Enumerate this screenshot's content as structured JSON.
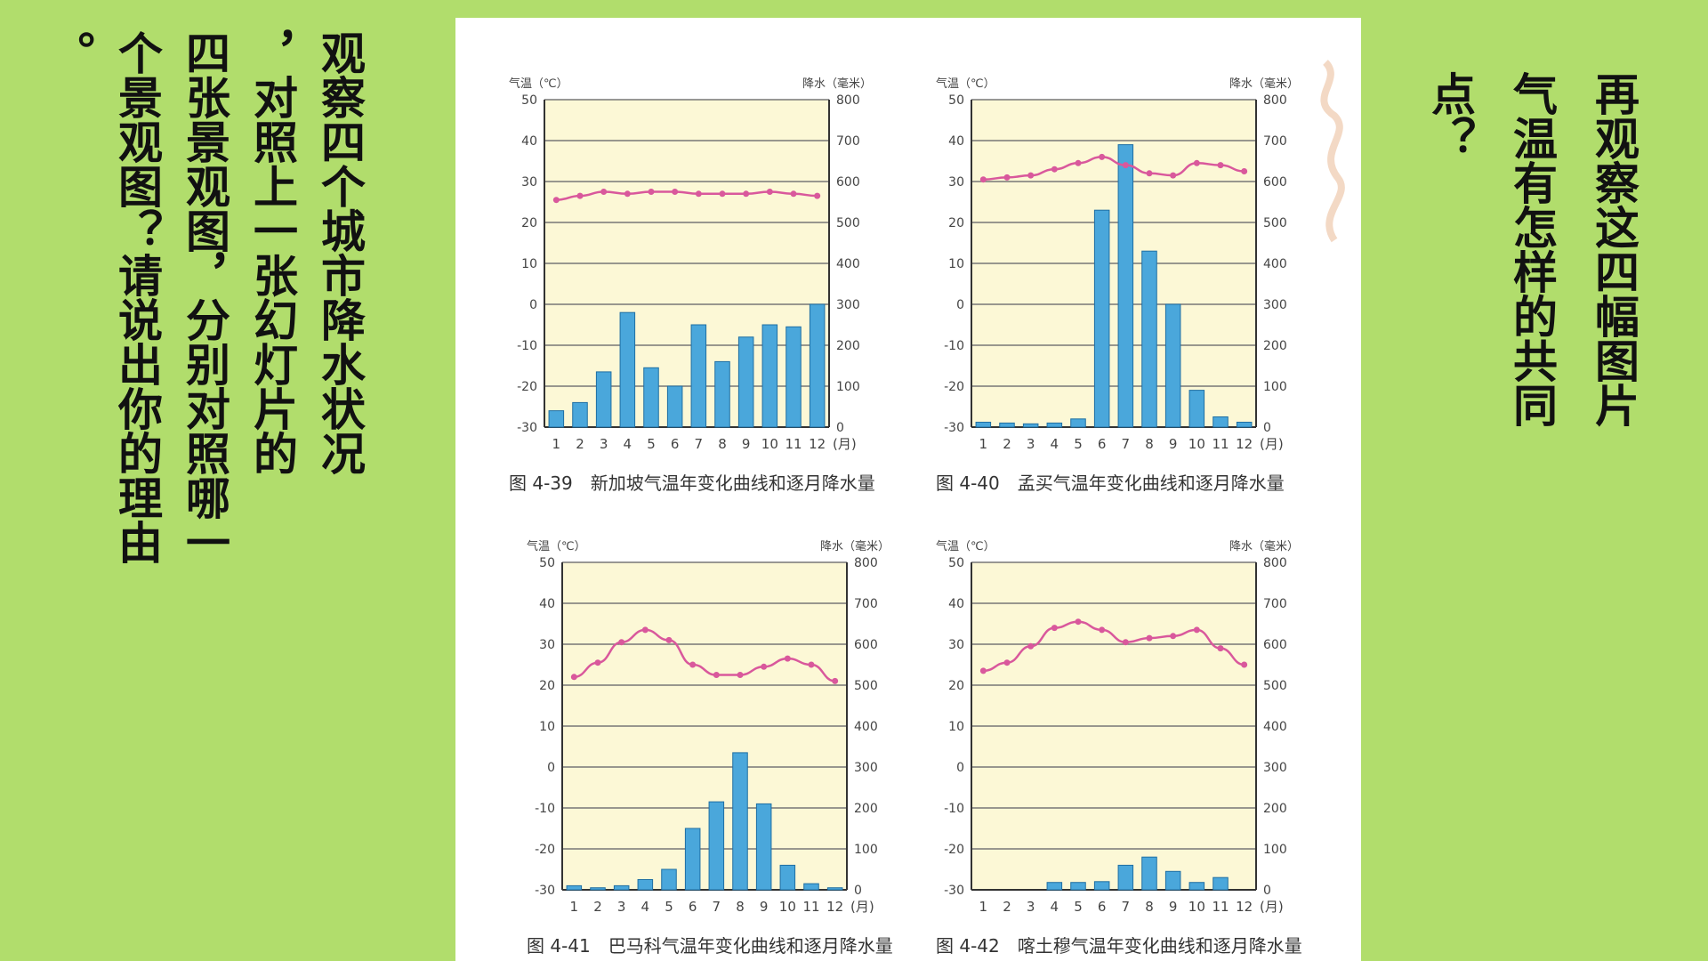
{
  "slide": {
    "left_lines": [
      "观察四个城市降水状况",
      "，对照上一张幻灯片的",
      "四张景观图，分别对照哪一",
      "个景观图？请说出你的理由",
      "。"
    ],
    "right_lines": [
      "再观察这四幅图片",
      "气温有怎样的共同",
      "点？"
    ]
  },
  "colors": {
    "background": "#b1dd6c",
    "plot_bg": "#fcf8d6",
    "temp_line": "#d9589c",
    "bar": "#4aa7db"
  },
  "chart_data": [
    {
      "type": "bar",
      "caption": "图 4-39　新加坡气温年变化曲线和逐月降水量",
      "left_axis_label": "气温（℃）",
      "right_axis_label": "降水（毫米）",
      "categories": [
        "1",
        "2",
        "3",
        "4",
        "5",
        "6",
        "7",
        "8",
        "9",
        "10",
        "11",
        "12"
      ],
      "month_unit": "(月)",
      "temperature_ticks": [
        50,
        40,
        30,
        20,
        10,
        0,
        -10,
        -20,
        -30
      ],
      "precip_ticks": [
        800,
        700,
        600,
        500,
        400,
        300,
        200,
        100,
        0
      ],
      "temperature_range": [
        -30,
        50
      ],
      "precip_range": [
        0,
        800
      ],
      "precipitation": [
        40,
        60,
        135,
        280,
        145,
        100,
        250,
        160,
        220,
        250,
        245,
        300
      ],
      "temperature": [
        25.5,
        26.5,
        27.5,
        27,
        27.5,
        27.5,
        27,
        27,
        27,
        27.5,
        27,
        26.5
      ]
    },
    {
      "type": "bar",
      "caption": "图 4-40　孟买气温年变化曲线和逐月降水量",
      "left_axis_label": "气温（℃）",
      "right_axis_label": "降水（毫米）",
      "categories": [
        "1",
        "2",
        "3",
        "4",
        "5",
        "6",
        "7",
        "8",
        "9",
        "10",
        "11",
        "12"
      ],
      "month_unit": "(月)",
      "temperature_ticks": [
        50,
        40,
        30,
        20,
        10,
        0,
        -10,
        -20,
        -30
      ],
      "precip_ticks": [
        800,
        700,
        600,
        500,
        400,
        300,
        200,
        100,
        0
      ],
      "temperature_range": [
        -30,
        50
      ],
      "precip_range": [
        0,
        800
      ],
      "precipitation": [
        12,
        10,
        8,
        10,
        20,
        530,
        690,
        430,
        300,
        90,
        25,
        12
      ],
      "temperature": [
        30.5,
        31,
        31.5,
        33,
        34.5,
        36,
        34,
        32,
        31.5,
        34.5,
        34,
        32.5
      ]
    },
    {
      "type": "bar",
      "caption": "图 4-41　巴马科气温年变化曲线和逐月降水量",
      "left_axis_label": "气温（℃）",
      "right_axis_label": "降水（毫米）",
      "categories": [
        "1",
        "2",
        "3",
        "4",
        "5",
        "6",
        "7",
        "8",
        "9",
        "10",
        "11",
        "12"
      ],
      "month_unit": "(月)",
      "temperature_ticks": [
        50,
        40,
        30,
        20,
        10,
        0,
        -10,
        -20,
        -30
      ],
      "precip_ticks": [
        800,
        700,
        600,
        500,
        400,
        300,
        200,
        100,
        0
      ],
      "temperature_range": [
        -30,
        50
      ],
      "precip_range": [
        0,
        800
      ],
      "precipitation": [
        10,
        5,
        10,
        25,
        50,
        150,
        215,
        335,
        210,
        60,
        15,
        5
      ],
      "temperature": [
        22,
        25.5,
        30.5,
        33.5,
        31,
        25,
        22.5,
        22.5,
        24.5,
        26.5,
        25,
        21
      ]
    },
    {
      "type": "bar",
      "caption": "图 4-42　喀土穆气温年变化曲线和逐月降水量",
      "left_axis_label": "气温（℃）",
      "right_axis_label": "降水（毫米）",
      "categories": [
        "1",
        "2",
        "3",
        "4",
        "5",
        "6",
        "7",
        "8",
        "9",
        "10",
        "11",
        "12"
      ],
      "month_unit": "(月)",
      "temperature_ticks": [
        50,
        40,
        30,
        20,
        10,
        0,
        -10,
        -20,
        -30
      ],
      "precip_ticks": [
        800,
        700,
        600,
        500,
        400,
        300,
        200,
        100,
        0
      ],
      "temperature_range": [
        -30,
        50
      ],
      "precip_range": [
        0,
        800
      ],
      "precipitation": [
        0,
        0,
        0,
        18,
        18,
        20,
        60,
        80,
        45,
        18,
        30,
        0
      ],
      "temperature": [
        23.5,
        25.5,
        29.5,
        34,
        35.5,
        33.5,
        30.5,
        31.5,
        32,
        33.5,
        29,
        25
      ]
    }
  ]
}
